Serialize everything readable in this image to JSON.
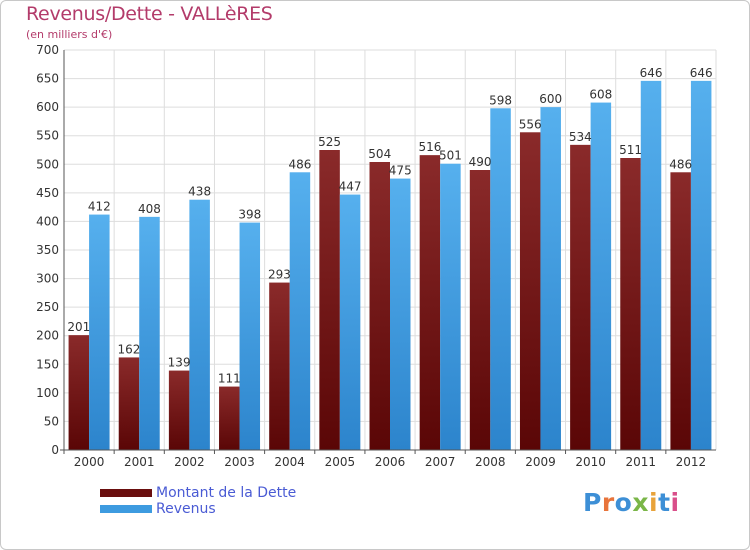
{
  "title": "Revenus/Dette - VALLèRES",
  "subtitle": "(en milliers d'€)",
  "brand": "Proxiti",
  "colors": {
    "debt": "#7a1a1a",
    "revenue": "#3d9be0",
    "title": "#b33b6a",
    "legend_text": "#4a5bd4",
    "grid": "#dcdcdc",
    "background": "#ffffff"
  },
  "chart_data": {
    "type": "bar",
    "categories": [
      "2000",
      "2001",
      "2002",
      "2003",
      "2004",
      "2005",
      "2006",
      "2007",
      "2008",
      "2009",
      "2010",
      "2011",
      "2012"
    ],
    "series": [
      {
        "name": "Montant de la Dette",
        "color": "#7a1a1a",
        "values": [
          201,
          162,
          139,
          111,
          293,
          525,
          504,
          516,
          490,
          556,
          534,
          511,
          486
        ]
      },
      {
        "name": "Revenus",
        "color": "#3d9be0",
        "values": [
          412,
          408,
          438,
          398,
          486,
          447,
          475,
          501,
          598,
          600,
          608,
          646,
          646
        ]
      }
    ],
    "title": "Revenus/Dette - VALLèRES",
    "ylabel": "(en milliers d'€)",
    "ylim": [
      0,
      700
    ],
    "yticks": [
      0,
      50,
      100,
      150,
      200,
      250,
      300,
      350,
      400,
      450,
      500,
      550,
      600,
      650,
      700
    ],
    "grid": true,
    "legend_position": "bottom-left"
  }
}
